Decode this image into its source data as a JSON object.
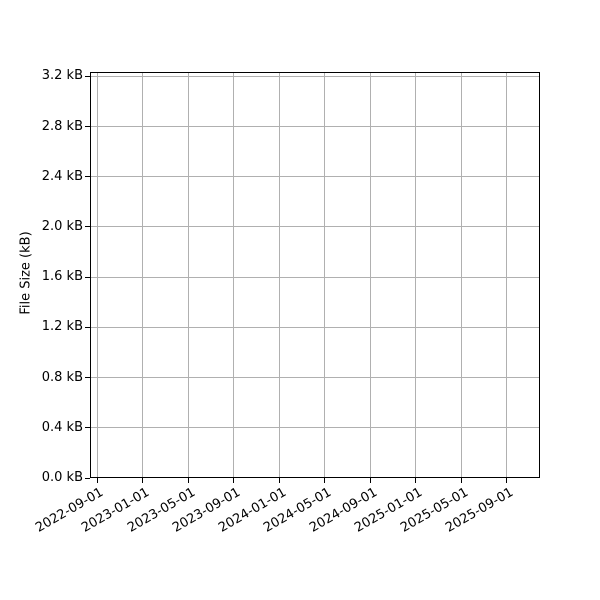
{
  "chart_data": {
    "type": "line",
    "title": "",
    "xlabel": "",
    "ylabel": "File Size (kB)",
    "x_tick_labels": [
      "2022-09-01",
      "2023-01-01",
      "2023-05-01",
      "2023-09-01",
      "2024-01-01",
      "2024-05-01",
      "2024-09-01",
      "2025-01-01",
      "2025-05-01",
      "2025-09-01"
    ],
    "y_tick_values": [
      0.0,
      0.4,
      0.8,
      1.2,
      1.6,
      2.0,
      2.4,
      2.8,
      3.2
    ],
    "y_tick_labels": [
      "0.0 kB",
      "0.4 kB",
      "0.8 kB",
      "1.2 kB",
      "1.6 kB",
      "2.0 kB",
      "2.4 kB",
      "2.8 kB",
      "3.2 kB"
    ],
    "ylim": [
      0.0,
      3.235
    ],
    "grid": true,
    "legend": false,
    "series": []
  },
  "colors": {
    "background": "#ffffff",
    "spine": "#000000",
    "grid": "#b0b0b0",
    "text": "#000000"
  }
}
